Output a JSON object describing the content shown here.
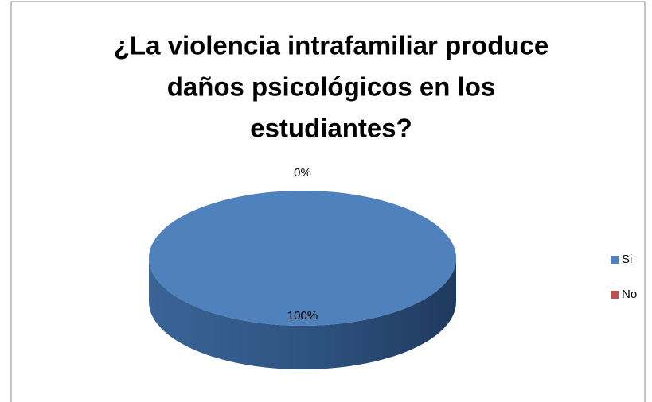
{
  "chart_data": {
    "type": "pie3d",
    "title": [
      "¿La violencia intrafamiliar produce",
      "daños psicológicos en los",
      "estudiantes?"
    ],
    "categories": [
      "Si",
      "No"
    ],
    "values": [
      100,
      0
    ],
    "value_labels": [
      "100%",
      "0%"
    ],
    "colors": [
      "#4f81bd",
      "#c0504d"
    ],
    "legend": "right"
  }
}
